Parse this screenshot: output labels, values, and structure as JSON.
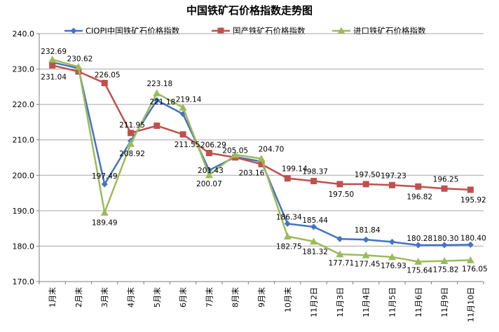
{
  "chart_data": {
    "type": "line",
    "title": "中国铁矿石价格指数走势图",
    "xlabel": "",
    "ylabel": "",
    "ylim": [
      170,
      240
    ],
    "yticks": [
      "170.0",
      "180.0",
      "190.0",
      "200.0",
      "210.0",
      "220.0",
      "230.0",
      "240.0"
    ],
    "grid": true,
    "legend_position": "top",
    "categories": [
      "1月末",
      "2月末",
      "3月末",
      "4月末",
      "5月末",
      "6月末",
      "7月末",
      "8月末",
      "9月末",
      "10月末",
      "11月2日",
      "11月3日",
      "11月4日",
      "11月5日",
      "11月6日",
      "11月9日",
      "11月10日"
    ],
    "series": [
      {
        "name": "CIOPI中国铁矿石价格指数",
        "color": "#4472C4",
        "marker": "diamond",
        "values": [
          231.9,
          230.2,
          197.49,
          209.7,
          221.18,
          217.3,
          201.43,
          205.2,
          203.9,
          186.34,
          185.44,
          182.04,
          181.84,
          181.2,
          180.28,
          180.3,
          180.4
        ],
        "labels": [
          "",
          "",
          "197.49",
          "",
          "221.18",
          "",
          "201.43",
          "",
          "",
          "186.34",
          "185.44",
          "",
          "181.84",
          "",
          "180.28",
          "180.30",
          "180.40"
        ]
      },
      {
        "name": "国产铁矿石价格指数",
        "color": "#C0504D",
        "marker": "square",
        "values": [
          231.04,
          229.3,
          226.05,
          211.95,
          214.0,
          211.55,
          206.29,
          205.05,
          203.16,
          199.14,
          198.37,
          197.5,
          197.5,
          197.23,
          196.82,
          196.25,
          195.92
        ],
        "labels": [
          "231.04",
          "",
          "226.05",
          "211.95",
          "",
          "211.55",
          "206.29",
          "205.05",
          "203.16",
          "199.14",
          "198.37",
          "197.50",
          "197.50",
          "197.23",
          "196.82",
          "196.25",
          "195.92"
        ]
      },
      {
        "name": "进口铁矿石价格指数",
        "color": "#9BBB59",
        "marker": "triangle",
        "values": [
          232.69,
          230.62,
          189.49,
          208.92,
          223.18,
          219.14,
          200.07,
          205.8,
          204.7,
          182.75,
          181.32,
          177.71,
          177.45,
          176.93,
          175.64,
          175.82,
          176.05
        ],
        "labels": [
          "232.69",
          "230.62",
          "189.49",
          "208.92",
          "223.18",
          "219.14",
          "200.07",
          "",
          "204.70",
          "182.75",
          "181.32",
          "177.71",
          "177.45",
          "176.93",
          "175.64",
          "175.82",
          "176.05"
        ]
      }
    ]
  }
}
